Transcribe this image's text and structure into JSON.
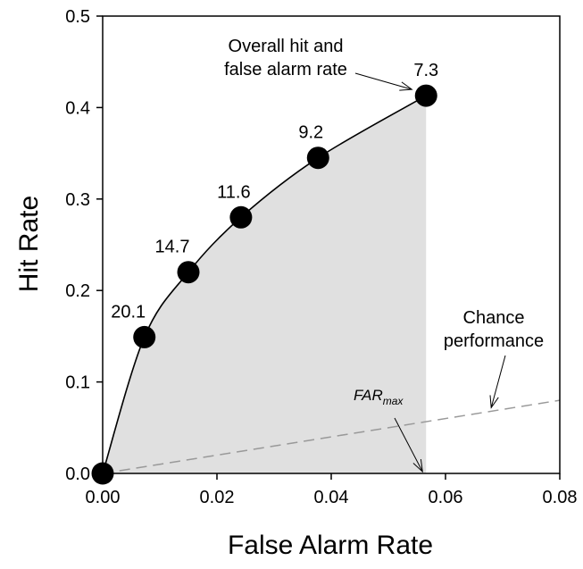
{
  "chart_data": {
    "type": "line",
    "xlabel": "False Alarm Rate",
    "ylabel": "Hit Rate",
    "xlim": [
      0,
      0.08
    ],
    "ylim": [
      0,
      0.5
    ],
    "x_ticks": [
      "0.00",
      "0.02",
      "0.04",
      "0.06",
      "0.08"
    ],
    "y_ticks": [
      "0.0",
      "0.1",
      "0.2",
      "0.3",
      "0.4",
      "0.5"
    ],
    "grid": false,
    "points": [
      {
        "x": 0.0,
        "y": 0.0,
        "label": ""
      },
      {
        "x": 0.0073,
        "y": 0.149,
        "label": "20.1"
      },
      {
        "x": 0.015,
        "y": 0.22,
        "label": "14.7"
      },
      {
        "x": 0.0242,
        "y": 0.28,
        "label": "11.6"
      },
      {
        "x": 0.0377,
        "y": 0.345,
        "label": "9.2"
      },
      {
        "x": 0.0566,
        "y": 0.413,
        "label": "7.3"
      }
    ],
    "chance_line": {
      "x": [
        0,
        0.08
      ],
      "y": [
        0,
        0.08
      ]
    },
    "far_max": 0.0566,
    "point_color": "#000000",
    "fill_color": "#e0e0e0",
    "chance_color": "#999999",
    "annotations": {
      "overall_line1": "Overall hit and",
      "overall_line2": "false alarm rate",
      "chance_line1": "Chance",
      "chance_line2": "performance",
      "far_main": "FAR",
      "far_sub": "max"
    }
  }
}
